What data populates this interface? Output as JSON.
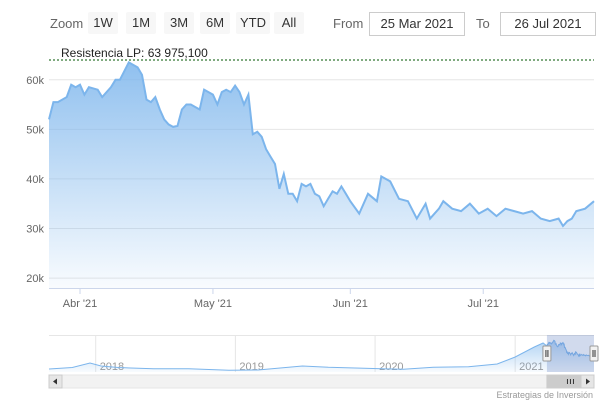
{
  "range_selector": {
    "zoom_label": "Zoom",
    "buttons": [
      "1W",
      "1M",
      "3M",
      "6M",
      "YTD",
      "All"
    ],
    "from_label": "From",
    "from_value": "25 Mar 2021",
    "to_label": "To",
    "to_value": "26 Jul 2021"
  },
  "chart_data": {
    "type": "area",
    "title": "",
    "xlabel": "",
    "ylabel": "",
    "x_range": [
      "2021-03-25",
      "2021-07-26"
    ],
    "ylim": [
      18000,
      66000
    ],
    "y_ticks": [
      20000,
      30000,
      40000,
      50000,
      60000
    ],
    "y_tick_labels": [
      "20k",
      "30k",
      "40k",
      "50k",
      "60k"
    ],
    "x_ticks": [
      "2021-04-01",
      "2021-05-01",
      "2021-06-01",
      "2021-07-01"
    ],
    "x_tick_labels": [
      "Abr '21",
      "May '21",
      "Jun '21",
      "Jul '21"
    ],
    "grid": true,
    "line_color": "#7cb5ec",
    "plot_line": {
      "label": "Resistencia LP: 63 975,100",
      "value": 63975.1,
      "style": "dashed",
      "color": "#005500"
    },
    "series": [
      {
        "x": [
          "2021-03-25",
          "2021-03-26",
          "2021-03-27",
          "2021-03-29",
          "2021-03-30",
          "2021-03-31",
          "2021-04-01",
          "2021-04-02",
          "2021-04-03",
          "2021-04-05",
          "2021-04-06",
          "2021-04-08",
          "2021-04-09",
          "2021-04-10",
          "2021-04-12",
          "2021-04-13",
          "2021-04-14",
          "2021-04-15",
          "2021-04-16",
          "2021-04-17",
          "2021-04-18",
          "2021-04-19",
          "2021-04-20",
          "2021-04-21",
          "2021-04-22",
          "2021-04-23",
          "2021-04-24",
          "2021-04-25",
          "2021-04-26",
          "2021-04-27",
          "2021-04-28",
          "2021-04-29",
          "2021-04-30",
          "2021-05-01",
          "2021-05-02",
          "2021-05-03",
          "2021-05-04",
          "2021-05-05",
          "2021-05-06",
          "2021-05-07",
          "2021-05-08",
          "2021-05-09",
          "2021-05-10",
          "2021-05-11",
          "2021-05-12",
          "2021-05-13",
          "2021-05-14",
          "2021-05-15",
          "2021-05-16",
          "2021-05-17",
          "2021-05-18",
          "2021-05-19",
          "2021-05-20",
          "2021-05-21",
          "2021-05-22",
          "2021-05-23",
          "2021-05-24",
          "2021-05-25",
          "2021-05-26",
          "2021-05-27",
          "2021-05-28",
          "2021-05-29",
          "2021-05-30",
          "2021-05-31",
          "2021-06-01",
          "2021-06-03",
          "2021-06-05",
          "2021-06-07",
          "2021-06-08",
          "2021-06-10",
          "2021-06-12",
          "2021-06-14",
          "2021-06-16",
          "2021-06-18",
          "2021-06-19",
          "2021-06-21",
          "2021-06-22",
          "2021-06-24",
          "2021-06-26",
          "2021-06-28",
          "2021-06-30",
          "2021-07-02",
          "2021-07-04",
          "2021-07-06",
          "2021-07-08",
          "2021-07-10",
          "2021-07-12",
          "2021-07-14",
          "2021-07-16",
          "2021-07-18",
          "2021-07-19",
          "2021-07-20",
          "2021-07-21",
          "2021-07-22",
          "2021-07-24",
          "2021-07-26"
        ],
        "y": [
          52000,
          55500,
          55500,
          56500,
          59000,
          58500,
          59000,
          57000,
          58500,
          58000,
          56500,
          58500,
          60000,
          60000,
          63500,
          63000,
          62500,
          61000,
          56000,
          55500,
          56500,
          54000,
          52000,
          51000,
          50500,
          50700,
          54000,
          55000,
          55000,
          54500,
          54000,
          58000,
          57500,
          57000,
          55000,
          57500,
          58000,
          57500,
          58800,
          57500,
          55000,
          57000,
          49000,
          49500,
          48500,
          46000,
          44500,
          43000,
          38000,
          41000,
          37000,
          37000,
          35500,
          39000,
          38500,
          39000,
          37000,
          36500,
          34500,
          36000,
          37500,
          37000,
          38500,
          37000,
          35500,
          33000,
          37000,
          35500,
          40500,
          39500,
          36000,
          35500,
          32000,
          35000,
          32000,
          34000,
          35500,
          34000,
          33500,
          35000,
          33000,
          34000,
          32500,
          34000,
          33500,
          33000,
          33500,
          32000,
          31500,
          32000,
          30500,
          31500,
          32000,
          33500,
          34000,
          35500
        ]
      }
    ]
  },
  "navigator": {
    "year_labels": [
      "2018",
      "2019",
      "2020",
      "2021"
    ],
    "scroll_left_icon": "arrow-left-icon",
    "scroll_right_icon": "arrow-right-icon",
    "grip_icon": "grip-icon"
  },
  "credits": "Estrategias de Inversión"
}
